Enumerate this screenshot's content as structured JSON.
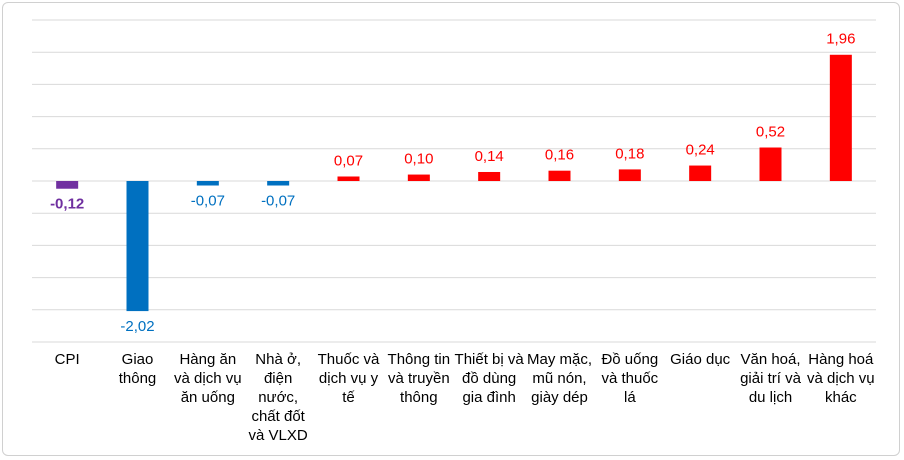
{
  "chart_data": {
    "type": "bar",
    "categories": [
      "CPI",
      "Giao thông",
      "Hàng ăn và dịch vụ ăn uống",
      "Nhà ở, điện nước, chất đốt và VLXD",
      "Thuốc và dịch vụ y tế",
      "Thông tin và truyền thông",
      "Thiết bị và đồ dùng gia đình",
      "May mặc, mũ nón, giày dép",
      "Đồ uống và thuốc lá",
      "Giáo dục",
      "Văn hoá, giải trí và du lịch",
      "Hàng hoá và dịch vụ khác"
    ],
    "values": [
      -0.12,
      -2.02,
      -0.07,
      -0.07,
      0.07,
      0.1,
      0.14,
      0.16,
      0.18,
      0.24,
      0.52,
      1.96
    ],
    "value_labels": [
      "-0,12",
      "-2,02",
      "-0,07",
      "-0,07",
      "0,07",
      "0,10",
      "0,14",
      "0,16",
      "0,18",
      "0,24",
      "0,52",
      "1,96"
    ],
    "colors": [
      "#7030a0",
      "#0070c0",
      "#0070c0",
      "#0070c0",
      "#ff0000",
      "#ff0000",
      "#ff0000",
      "#ff0000",
      "#ff0000",
      "#ff0000",
      "#ff0000",
      "#ff0000"
    ],
    "ylim": [
      -2.5,
      2.5
    ],
    "yticks": [
      -2.5,
      -2,
      -1.5,
      -1,
      -0.5,
      0,
      0.5,
      1,
      1.5,
      2,
      2.5
    ],
    "grid": true
  }
}
